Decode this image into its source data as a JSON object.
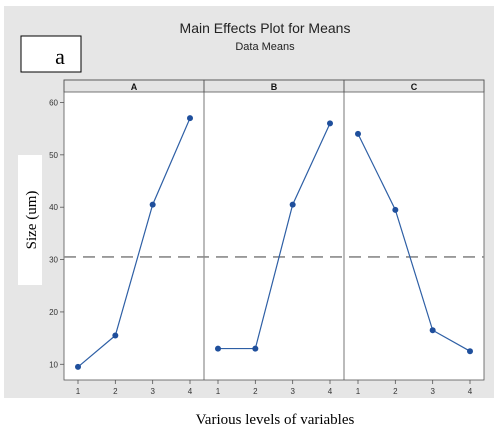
{
  "panel_label": "a",
  "chart_data": {
    "type": "line",
    "title": "Main Effects Plot for Means",
    "subtitle": "Data Means",
    "xlabel": "Various levels of variables",
    "ylabel": "Size (um)",
    "ylim": [
      7,
      62
    ],
    "yticks": [
      10,
      20,
      30,
      40,
      50,
      60
    ],
    "mean_line": 30.5,
    "grid": false,
    "colors": {
      "line": "#2e5fa5",
      "marker": "#1f4f9c",
      "mean_line": "#8a8a8a",
      "frame_bg": "#e6e6e6",
      "panel_header_bg": "#e4e4e4"
    },
    "panels": [
      {
        "name": "A",
        "x": [
          "1",
          "2",
          "3",
          "4"
        ],
        "values": [
          9.5,
          15.5,
          40.5,
          57
        ]
      },
      {
        "name": "B",
        "x": [
          "1",
          "2",
          "3",
          "4"
        ],
        "values": [
          13,
          13,
          40.5,
          56
        ]
      },
      {
        "name": "C",
        "x": [
          "1",
          "2",
          "3",
          "4"
        ],
        "values": [
          54,
          39.5,
          16.5,
          12.5
        ]
      }
    ]
  }
}
